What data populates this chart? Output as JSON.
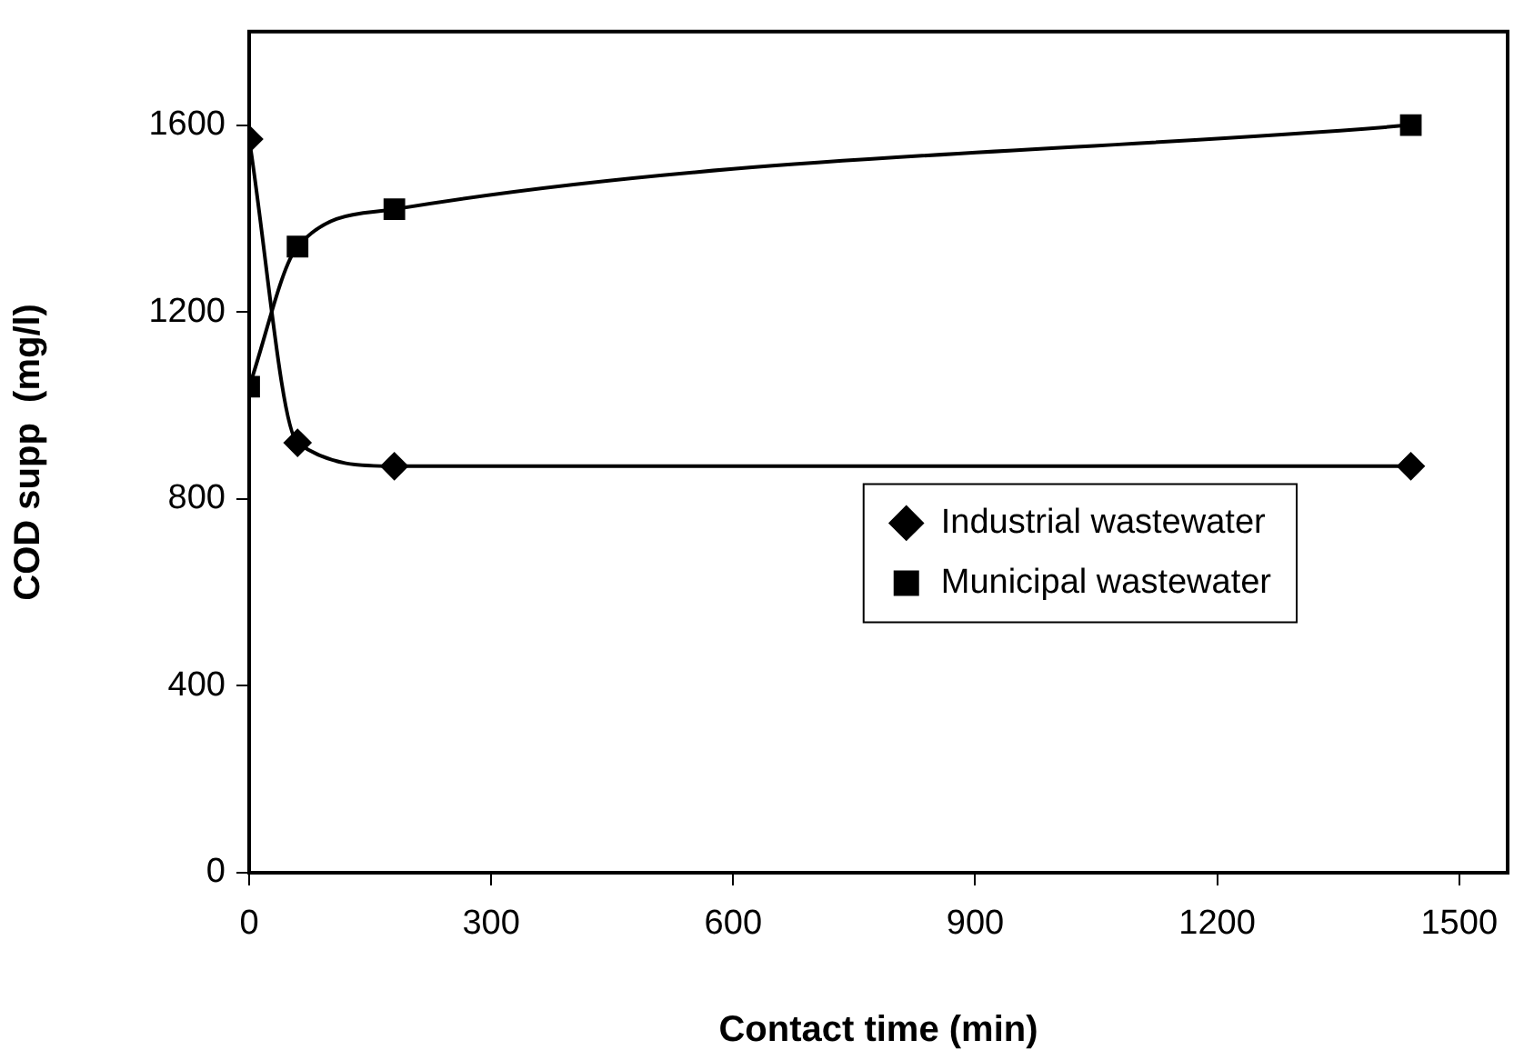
{
  "chart_data": {
    "type": "line",
    "xlabel": "Contact time (min)",
    "ylabel": "COD supp  (mg/l)",
    "x": [
      0,
      60,
      180,
      1440
    ],
    "series": [
      {
        "name": "Industrial wastewater",
        "color": "#000000",
        "marker": "diamond",
        "values": [
          1570,
          920,
          870,
          870
        ]
      },
      {
        "name": "Municipal wastewater",
        "color": "#000000",
        "marker": "square",
        "values": [
          1040,
          1340,
          1420,
          1600
        ]
      }
    ],
    "xlim": [
      0,
      1560
    ],
    "xticks": [
      0,
      300,
      600,
      900,
      1200,
      1500
    ],
    "ylim": [
      0,
      1800
    ],
    "yticks": [
      0,
      400,
      800,
      1200,
      1600
    ],
    "grid": false,
    "legend": "right",
    "line_style": "solid"
  }
}
